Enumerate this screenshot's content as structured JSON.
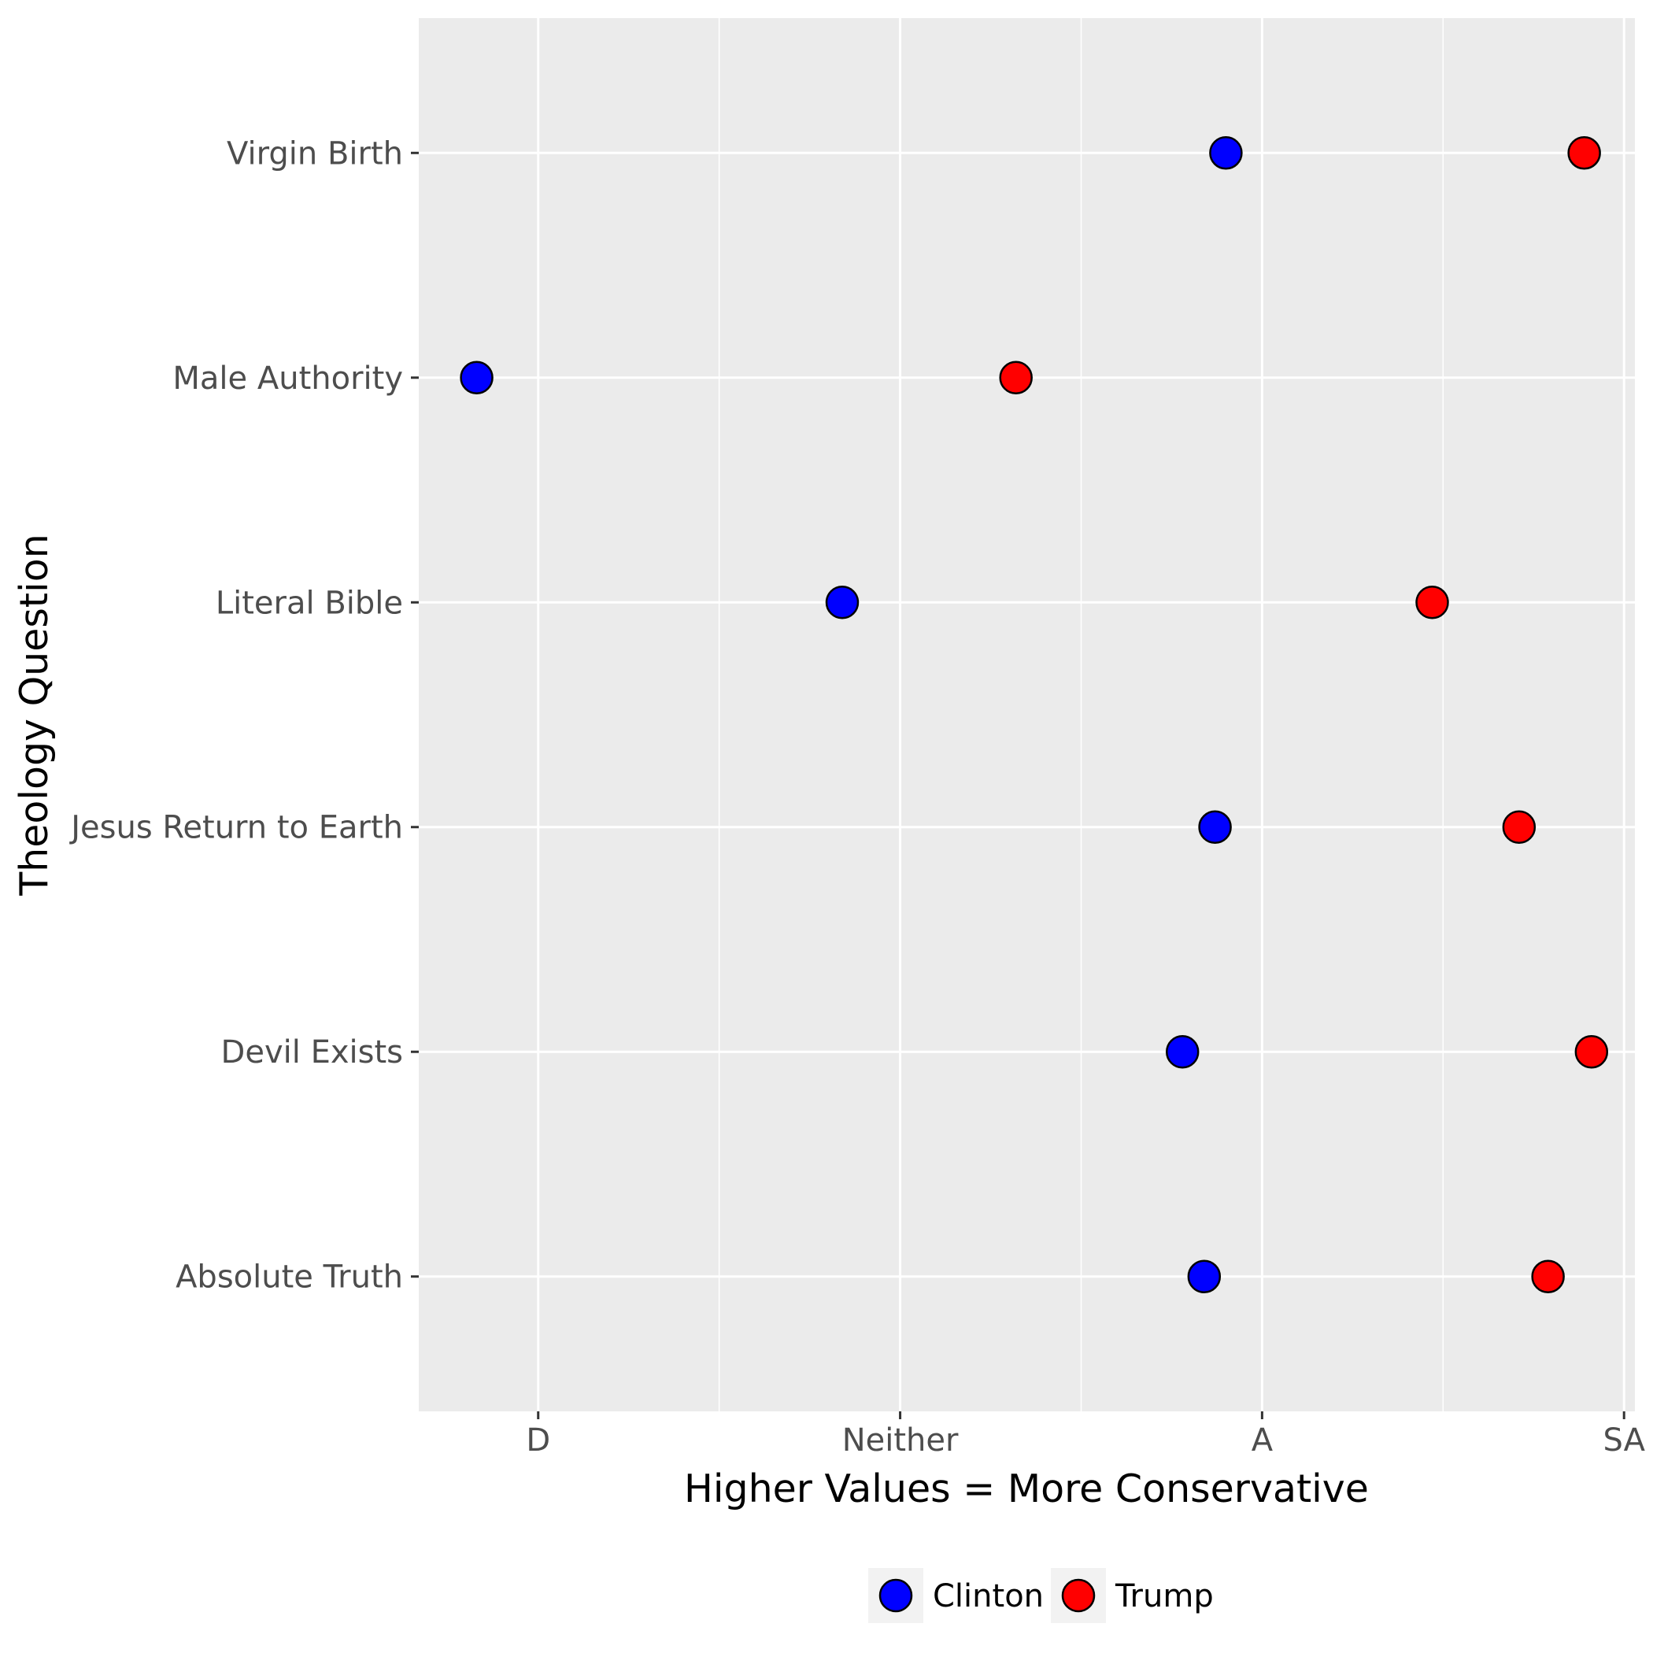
{
  "chart_data": {
    "type": "scatter",
    "title": "",
    "xlabel": "Higher Values = More Conservative",
    "ylabel": "Theology Question",
    "x_ticks": [
      {
        "value": 2,
        "label": "D"
      },
      {
        "value": 3,
        "label": "Neither"
      },
      {
        "value": 4,
        "label": "A"
      },
      {
        "value": 5,
        "label": "SA"
      }
    ],
    "xlim": [
      1.67,
      5.03
    ],
    "categories": [
      "Virgin Birth",
      "Male Authority",
      "Literal Bible",
      "Jesus Return to Earth",
      "Devil Exists",
      "Absolute Truth"
    ],
    "series": [
      {
        "name": "Clinton",
        "color": "#0000ff",
        "values": [
          3.9,
          1.83,
          2.84,
          3.87,
          3.78,
          3.84
        ]
      },
      {
        "name": "Trump",
        "color": "#ff0000",
        "values": [
          4.89,
          3.32,
          4.47,
          4.71,
          4.91,
          4.79
        ]
      }
    ],
    "grid": true,
    "legend_position": "bottom"
  }
}
